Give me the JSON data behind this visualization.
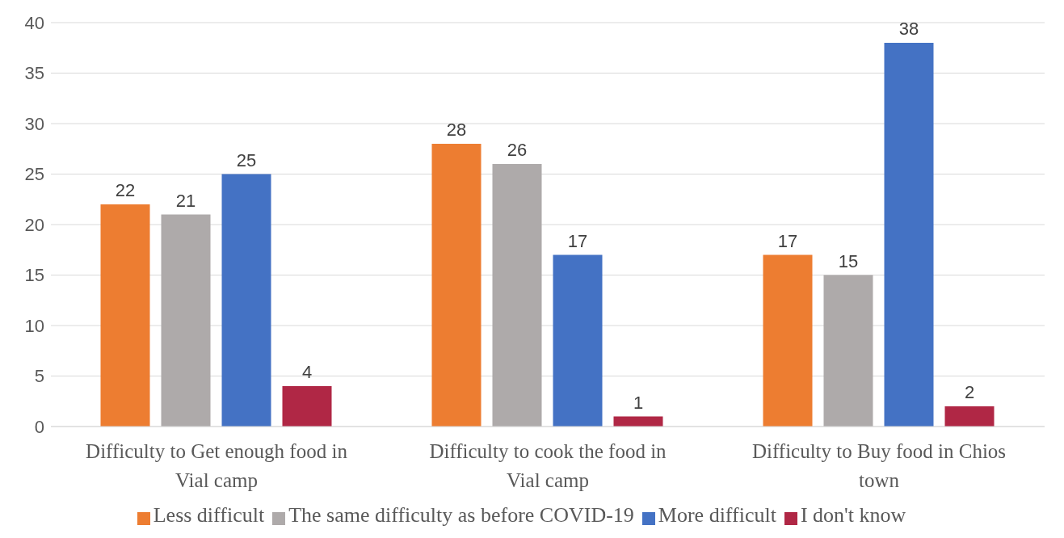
{
  "chart_data": {
    "type": "bar",
    "categories": [
      "Difficulty to Get enough food in Vial camp",
      "Difficulty to cook the food in Vial camp",
      "Difficulty to Buy food in Chios town"
    ],
    "series": [
      {
        "name": "Less difficult",
        "color": "#ed7d31",
        "values": [
          22,
          28,
          17
        ]
      },
      {
        "name": "The same difficulty as before COVID-19",
        "color": "#aeaaaa",
        "values": [
          21,
          26,
          15
        ]
      },
      {
        "name": "More difficult",
        "color": "#4472c4",
        "values": [
          25,
          17,
          38
        ]
      },
      {
        "name": "I don't know",
        "color": "#b02745",
        "values": [
          4,
          1,
          2
        ]
      }
    ],
    "ylim": [
      0,
      40
    ],
    "yticks": [
      0,
      5,
      10,
      15,
      20,
      25,
      30,
      35,
      40
    ],
    "grid": "y",
    "legend": "bottom",
    "data_labels": true
  }
}
